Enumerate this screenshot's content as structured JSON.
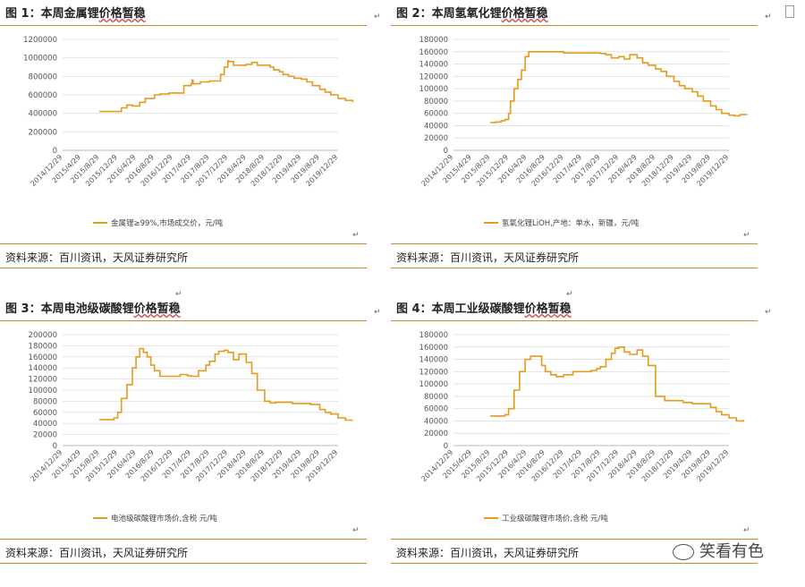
{
  "panels": [
    {
      "title_prefix": "图 1：",
      "title_main": "本周金属锂",
      "title_tail": "价格暂稳",
      "source": "资料来源：百川资讯，天风证券研究所",
      "chart_data": {
        "type": "line",
        "y_ticks": [
          "0",
          "200000",
          "400000",
          "600000",
          "800000",
          "1000000",
          "1200000"
        ],
        "ylim": [
          0,
          1200000
        ],
        "x_ticks": [
          "2014/12/29",
          "2015/4/29",
          "2015/8/29",
          "2015/12/29",
          "2016/4/29",
          "2016/8/29",
          "2016/12/29",
          "2017/4/29",
          "2017/8/29",
          "2017/12/29",
          "2018/4/29",
          "2018/8/29",
          "2018/12/29",
          "2019/4/29",
          "2019/8/29",
          "2019/12/29"
        ],
        "legend": "金属锂≥99%,市场成交价，元/吨",
        "series": [
          {
            "color": "#e69a1f",
            "x": [
              2.0,
              3.0,
              3.2,
              3.5,
              3.8,
              4.2,
              4.5,
              5.0,
              5.3,
              5.8,
              6.0,
              6.6,
              7.0,
              7.05,
              7.1,
              7.5,
              8.0,
              8.3,
              8.6,
              8.8,
              9.0,
              9.05,
              9.3,
              10.0,
              10.3,
              10.6,
              11.0,
              11.3,
              11.5,
              11.8,
              12.0,
              12.3,
              12.6,
              13.0,
              13.3,
              13.6,
              14.0,
              14.3,
              14.6,
              15.0,
              15.4,
              15.8
            ],
            "values": [
              420000,
              420000,
              460000,
              490000,
              480000,
              520000,
              560000,
              600000,
              610000,
              620000,
              620000,
              700000,
              720000,
              760000,
              720000,
              740000,
              750000,
              750000,
              820000,
              900000,
              970000,
              960000,
              920000,
              930000,
              950000,
              920000,
              920000,
              900000,
              870000,
              850000,
              820000,
              800000,
              780000,
              770000,
              740000,
              700000,
              660000,
              630000,
              600000,
              560000,
              540000,
              520000
            ]
          }
        ]
      }
    },
    {
      "title_prefix": "图 2：",
      "title_main": "本周氢氧化锂",
      "title_tail": "价格暂稳",
      "source": "资料来源：百川资讯，天风证券研究所",
      "chart_data": {
        "type": "line",
        "y_ticks": [
          "0",
          "20000",
          "40000",
          "60000",
          "80000",
          "100000",
          "120000",
          "140000",
          "160000",
          "180000"
        ],
        "ylim": [
          0,
          180000
        ],
        "x_ticks": [
          "2014/12/29",
          "2015/4/29",
          "2015/8/29",
          "2015/12/29",
          "2016/4/29",
          "2016/8/29",
          "2016/12/29",
          "2017/4/29",
          "2017/8/29",
          "2017/12/29",
          "2018/4/29",
          "2018/8/29",
          "2018/12/29",
          "2019/4/29",
          "2019/8/29",
          "2019/12/29"
        ],
        "legend": "氢氧化锂LiOH,产地：单水，新疆，元/吨",
        "series": [
          {
            "color": "#e69a1f",
            "x": [
              2.0,
              2.3,
              2.6,
              2.8,
              3.0,
              3.1,
              3.3,
              3.5,
              3.7,
              3.9,
              4.1,
              4.3,
              5.0,
              6.0,
              7.0,
              8.0,
              8.3,
              8.6,
              9.0,
              9.3,
              9.6,
              10.0,
              10.3,
              10.6,
              11.0,
              11.3,
              11.6,
              12.0,
              12.3,
              12.6,
              13.0,
              13.3,
              13.6,
              14.0,
              14.3,
              14.6,
              15.0,
              15.3,
              15.6,
              16.0
            ],
            "values": [
              45000,
              46000,
              48000,
              50000,
              60000,
              80000,
              100000,
              115000,
              130000,
              152000,
              160000,
              160000,
              160000,
              158000,
              158000,
              157000,
              155000,
              150000,
              152000,
              148000,
              155000,
              150000,
              142000,
              138000,
              132000,
              128000,
              120000,
              112000,
              105000,
              100000,
              95000,
              88000,
              80000,
              72000,
              66000,
              60000,
              57000,
              56000,
              58000,
              58000
            ]
          }
        ]
      }
    },
    {
      "title_prefix": "图 3：",
      "title_main": "本周电池级碳酸锂",
      "title_tail": "价格暂稳",
      "source": "资料来源：百川资讯，天风证券研究所",
      "chart_data": {
        "type": "line",
        "y_ticks": [
          "0",
          "20000",
          "40000",
          "60000",
          "80000",
          "100000",
          "120000",
          "140000",
          "160000",
          "180000",
          "200000"
        ],
        "ylim": [
          0,
          200000
        ],
        "x_ticks": [
          "2014/12/29",
          "2015/4/29",
          "2015/8/29",
          "2015/12/29",
          "2016/4/29",
          "2016/8/29",
          "2016/12/29",
          "2017/4/29",
          "2017/8/29",
          "2017/12/29",
          "2018/4/29",
          "2018/8/29",
          "2018/12/29",
          "2019/4/29",
          "2019/8/29",
          "2019/12/29"
        ],
        "legend": "电池级碳酸锂市场价,含税 元/吨",
        "series": [
          {
            "color": "#e69a1f",
            "x": [
              2.0,
              2.4,
              2.8,
              3.0,
              3.2,
              3.5,
              3.8,
              4.0,
              4.2,
              4.4,
              4.6,
              4.8,
              5.0,
              5.3,
              5.6,
              6.0,
              6.4,
              6.8,
              7.0,
              7.4,
              7.8,
              8.0,
              8.3,
              8.5,
              8.8,
              9.0,
              9.3,
              9.6,
              10.0,
              10.3,
              10.6,
              11.0,
              11.3,
              11.6,
              12.0,
              12.5,
              13.0,
              13.5,
              14.0,
              14.3,
              14.6,
              15.0,
              15.4,
              15.8
            ],
            "values": [
              47000,
              47000,
              50000,
              60000,
              85000,
              110000,
              140000,
              160000,
              175000,
              168000,
              160000,
              145000,
              135000,
              125000,
              125000,
              125000,
              128000,
              126000,
              125000,
              135000,
              145000,
              152000,
              165000,
              170000,
              172000,
              168000,
              155000,
              165000,
              150000,
              130000,
              100000,
              80000,
              77000,
              78000,
              78000,
              76000,
              76000,
              74000,
              65000,
              60000,
              57000,
              50000,
              46000,
              46000
            ]
          }
        ]
      }
    },
    {
      "title_prefix": "图 4：",
      "title_main": "本周工业级碳酸锂",
      "title_tail": "价格暂稳",
      "source": "资料来源：百川资讯，天风证券研究所",
      "chart_data": {
        "type": "line",
        "y_ticks": [
          "0",
          "20000",
          "40000",
          "60000",
          "80000",
          "100000",
          "120000",
          "140000",
          "160000",
          "180000"
        ],
        "ylim": [
          0,
          180000
        ],
        "x_ticks": [
          "2014/12/29",
          "2015/4/29",
          "2015/8/29",
          "2015/12/29",
          "2016/4/29",
          "2016/8/29",
          "2016/12/29",
          "2017/4/29",
          "2017/8/29",
          "2017/12/29",
          "2018/4/29",
          "2018/8/29",
          "2018/12/29",
          "2019/4/29",
          "2019/8/29",
          "2019/12/29"
        ],
        "legend": "工业级碳酸锂市场价,含税 元/吨",
        "series": [
          {
            "color": "#e69a1f",
            "x": [
              2.0,
              2.4,
              2.8,
              3.0,
              3.3,
              3.6,
              3.9,
              4.2,
              4.5,
              4.8,
              5.0,
              5.3,
              5.6,
              6.0,
              6.5,
              7.0,
              7.5,
              7.8,
              8.0,
              8.3,
              8.6,
              8.8,
              9.0,
              9.3,
              9.6,
              10.0,
              10.3,
              10.6,
              11.0,
              11.5,
              12.0,
              12.5,
              13.0,
              13.5,
              14.0,
              14.3,
              14.6,
              15.0,
              15.4,
              15.8
            ],
            "values": [
              48000,
              48000,
              50000,
              60000,
              90000,
              120000,
              140000,
              145000,
              145000,
              130000,
              120000,
              115000,
              112000,
              115000,
              120000,
              120000,
              122000,
              125000,
              128000,
              140000,
              150000,
              158000,
              160000,
              152000,
              148000,
              155000,
              145000,
              130000,
              80000,
              73000,
              73000,
              70000,
              68000,
              68000,
              62000,
              55000,
              50000,
              45000,
              40000,
              42000
            ]
          }
        ]
      }
    }
  ],
  "misc": {
    "mid_mark": "↵",
    "watermark": "笑看有色"
  }
}
